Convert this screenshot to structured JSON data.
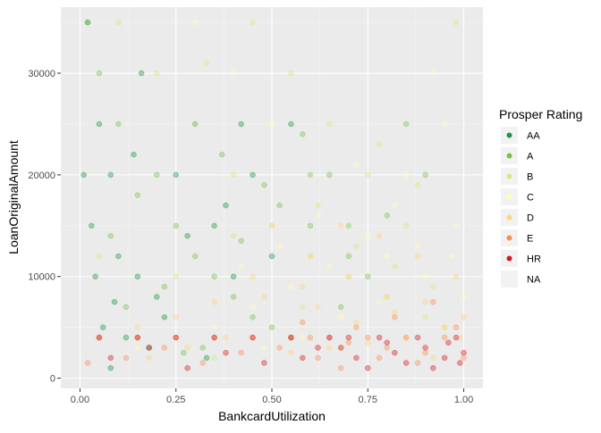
{
  "chart_data": {
    "type": "scatter",
    "title": "",
    "xlabel": "BankcardUtilization",
    "ylabel": "LoanOriginalAmount",
    "xlim": [
      -0.05,
      1.05
    ],
    "ylim": [
      -1000,
      36500
    ],
    "x_ticks": [
      0,
      0.25,
      0.5,
      0.75,
      1
    ],
    "x_tick_labels": [
      "0.00",
      "0.25",
      "0.50",
      "0.75",
      "1.00"
    ],
    "y_ticks": [
      0,
      10000,
      20000,
      30000
    ],
    "y_tick_labels": [
      "0",
      "10000",
      "20000",
      "30000"
    ],
    "grid": true,
    "panel_background": "#ebebeb",
    "point_alpha": 0.4,
    "legend": {
      "title": "Prosper Rating",
      "placement": "right",
      "entries": [
        {
          "label": "AA",
          "color": "#1a9641"
        },
        {
          "label": "A",
          "color": "#78c148"
        },
        {
          "label": "B",
          "color": "#d3ec7f"
        },
        {
          "label": "C",
          "color": "#fefdb8"
        },
        {
          "label": "D",
          "color": "#fed580"
        },
        {
          "label": "E",
          "color": "#f98e52"
        },
        {
          "label": "HR",
          "color": "#d7191c"
        },
        {
          "label": "NA",
          "color": "#ebebeb"
        }
      ]
    },
    "series": [
      {
        "name": "AA",
        "color": "#1a9641",
        "points": [
          [
            0.02,
            35000
          ],
          [
            0.05,
            25000
          ],
          [
            0.08,
            20000
          ],
          [
            0.03,
            15000
          ],
          [
            0.1,
            12000
          ],
          [
            0.15,
            10000
          ],
          [
            0.2,
            8000
          ],
          [
            0.06,
            5000
          ],
          [
            0.12,
            4000
          ],
          [
            0.3,
            25000
          ],
          [
            0.25,
            20000
          ],
          [
            0.35,
            15000
          ],
          [
            0.4,
            10000
          ],
          [
            0.18,
            3000
          ],
          [
            0.22,
            6000
          ],
          [
            0.08,
            1000
          ],
          [
            0.45,
            20000
          ],
          [
            0.28,
            14000
          ],
          [
            0.5,
            12000
          ],
          [
            0.55,
            25000
          ],
          [
            0.6,
            20000
          ],
          [
            0.14,
            22000
          ],
          [
            0.38,
            17000
          ],
          [
            0.7,
            15000
          ],
          [
            0.01,
            20000
          ],
          [
            0.04,
            10000
          ],
          [
            0.09,
            7500
          ],
          [
            0.33,
            2000
          ],
          [
            0.42,
            25000
          ],
          [
            0.16,
            30000
          ]
        ]
      },
      {
        "name": "A",
        "color": "#78c148",
        "points": [
          [
            0.05,
            30000
          ],
          [
            0.1,
            25000
          ],
          [
            0.2,
            20000
          ],
          [
            0.25,
            15000
          ],
          [
            0.3,
            12000
          ],
          [
            0.35,
            10000
          ],
          [
            0.4,
            8000
          ],
          [
            0.45,
            6000
          ],
          [
            0.5,
            5000
          ],
          [
            0.55,
            4000
          ],
          [
            0.6,
            15000
          ],
          [
            0.15,
            18000
          ],
          [
            0.02,
            35000
          ],
          [
            0.65,
            20000
          ],
          [
            0.7,
            12000
          ],
          [
            0.75,
            10000
          ],
          [
            0.8,
            16000
          ],
          [
            0.12,
            7000
          ],
          [
            0.32,
            3000
          ],
          [
            0.48,
            19000
          ],
          [
            0.58,
            24000
          ],
          [
            0.08,
            14000
          ],
          [
            0.22,
            9000
          ],
          [
            0.42,
            13500
          ],
          [
            0.68,
            7000
          ],
          [
            0.85,
            25000
          ],
          [
            0.9,
            20000
          ],
          [
            0.27,
            2500
          ],
          [
            0.37,
            22000
          ],
          [
            0.52,
            17000
          ]
        ]
      },
      {
        "name": "B",
        "color": "#d3ec7f",
        "points": [
          [
            0.1,
            35000
          ],
          [
            0.2,
            30000
          ],
          [
            0.3,
            25000
          ],
          [
            0.4,
            20000
          ],
          [
            0.5,
            15000
          ],
          [
            0.6,
            12000
          ],
          [
            0.7,
            10000
          ],
          [
            0.8,
            8000
          ],
          [
            0.9,
            6000
          ],
          [
            0.95,
            5000
          ],
          [
            0.45,
            35000
          ],
          [
            0.55,
            30000
          ],
          [
            0.65,
            25000
          ],
          [
            0.75,
            20000
          ],
          [
            0.85,
            15000
          ],
          [
            0.25,
            10000
          ],
          [
            0.15,
            4000
          ],
          [
            0.35,
            2000
          ],
          [
            0.62,
            17000
          ],
          [
            0.72,
            13000
          ],
          [
            0.82,
            11000
          ],
          [
            0.92,
            9000
          ],
          [
            0.98,
            35000
          ],
          [
            0.58,
            7000
          ],
          [
            0.68,
            3000
          ],
          [
            0.05,
            12000
          ],
          [
            0.4,
            14000
          ],
          [
            0.88,
            19000
          ],
          [
            0.78,
            23000
          ],
          [
            0.33,
            31000
          ]
        ]
      },
      {
        "name": "C",
        "color": "#fefdb8",
        "points": [
          [
            0.3,
            35000
          ],
          [
            0.4,
            30000
          ],
          [
            0.5,
            25000
          ],
          [
            0.6,
            20000
          ],
          [
            0.7,
            15000
          ],
          [
            0.8,
            12000
          ],
          [
            0.9,
            10000
          ],
          [
            1.0,
            8000
          ],
          [
            0.95,
            25000
          ],
          [
            0.85,
            20000
          ],
          [
            0.75,
            14000
          ],
          [
            0.65,
            11000
          ],
          [
            0.55,
            9000
          ],
          [
            0.45,
            7000
          ],
          [
            0.35,
            5000
          ],
          [
            0.25,
            4000
          ],
          [
            0.15,
            3000
          ],
          [
            0.98,
            15000
          ],
          [
            0.88,
            13000
          ],
          [
            0.78,
            7500
          ],
          [
            0.68,
            6000
          ],
          [
            0.58,
            4000
          ],
          [
            0.48,
            3000
          ],
          [
            0.92,
            30000
          ],
          [
            0.82,
            17000
          ],
          [
            0.72,
            21000
          ],
          [
            0.62,
            16000
          ],
          [
            0.52,
            13000
          ],
          [
            0.42,
            11000
          ],
          [
            0.97,
            12000
          ]
        ]
      },
      {
        "name": "D",
        "color": "#fed580",
        "points": [
          [
            0.5,
            15000
          ],
          [
            0.6,
            12000
          ],
          [
            0.7,
            10000
          ],
          [
            0.8,
            8000
          ],
          [
            0.9,
            7500
          ],
          [
            1.0,
            6000
          ],
          [
            0.95,
            5000
          ],
          [
            0.85,
            4000
          ],
          [
            0.75,
            3500
          ],
          [
            0.65,
            3000
          ],
          [
            0.55,
            2500
          ],
          [
            0.45,
            10000
          ],
          [
            0.35,
            7500
          ],
          [
            0.25,
            6000
          ],
          [
            0.15,
            5000
          ],
          [
            0.05,
            4000
          ],
          [
            0.98,
            10000
          ],
          [
            0.88,
            12000
          ],
          [
            0.78,
            14000
          ],
          [
            0.68,
            15000
          ],
          [
            0.58,
            9000
          ],
          [
            0.48,
            8000
          ],
          [
            0.38,
            4000
          ],
          [
            0.28,
            3000
          ],
          [
            0.18,
            2000
          ],
          [
            0.92,
            2000
          ],
          [
            0.82,
            6500
          ],
          [
            0.72,
            5500
          ],
          [
            0.62,
            7000
          ],
          [
            0.99,
            4000
          ]
        ]
      },
      {
        "name": "E",
        "color": "#f98e52",
        "points": [
          [
            0.6,
            4000
          ],
          [
            0.7,
            3500
          ],
          [
            0.8,
            3000
          ],
          [
            0.9,
            2500
          ],
          [
            1.0,
            2000
          ],
          [
            0.95,
            4000
          ],
          [
            0.85,
            4000
          ],
          [
            0.75,
            4000
          ],
          [
            0.65,
            4000
          ],
          [
            0.55,
            4000
          ],
          [
            0.45,
            4000
          ],
          [
            0.35,
            4000
          ],
          [
            0.25,
            4000
          ],
          [
            0.15,
            4000
          ],
          [
            0.05,
            4000
          ],
          [
            0.92,
            7500
          ],
          [
            0.82,
            6000
          ],
          [
            0.72,
            5000
          ],
          [
            0.62,
            2000
          ],
          [
            0.52,
            3000
          ],
          [
            0.42,
            2500
          ],
          [
            0.32,
            1500
          ],
          [
            0.22,
            3000
          ],
          [
            0.12,
            2000
          ],
          [
            0.02,
            1500
          ],
          [
            0.98,
            5000
          ],
          [
            0.88,
            1500
          ],
          [
            0.78,
            2000
          ],
          [
            0.68,
            1000
          ],
          [
            0.58,
            5500
          ]
        ]
      },
      {
        "name": "HR",
        "color": "#d7191c",
        "points": [
          [
            0.7,
            4000
          ],
          [
            0.8,
            3500
          ],
          [
            0.9,
            3000
          ],
          [
            1.0,
            2500
          ],
          [
            0.95,
            2000
          ],
          [
            0.85,
            1500
          ],
          [
            0.75,
            1000
          ],
          [
            0.65,
            4000
          ],
          [
            0.55,
            4000
          ],
          [
            0.45,
            4000
          ],
          [
            0.35,
            4000
          ],
          [
            0.25,
            4000
          ],
          [
            0.15,
            4000
          ],
          [
            0.05,
            4000
          ],
          [
            0.98,
            4000
          ],
          [
            0.88,
            4000
          ],
          [
            0.78,
            4000
          ],
          [
            0.68,
            3000
          ],
          [
            0.58,
            2000
          ],
          [
            0.48,
            1500
          ],
          [
            0.38,
            2500
          ],
          [
            0.28,
            1000
          ],
          [
            0.18,
            3000
          ],
          [
            0.08,
            2000
          ],
          [
            0.92,
            1000
          ],
          [
            0.82,
            2500
          ],
          [
            0.72,
            2000
          ],
          [
            0.62,
            3000
          ],
          [
            0.99,
            1500
          ],
          [
            0.96,
            3500
          ]
        ]
      }
    ]
  }
}
